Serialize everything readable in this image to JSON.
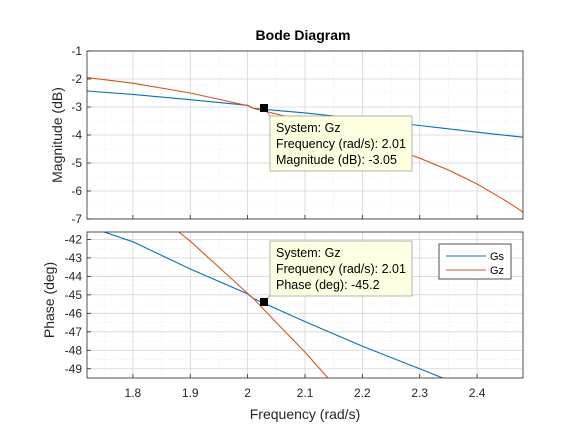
{
  "chart_data": {
    "type": "line",
    "title": "Bode Diagram",
    "xlabel": "Frequency  (rad/s)",
    "xlim": [
      1.72,
      2.48
    ],
    "x_ticks": [
      "1.8",
      "1.9",
      "2",
      "2.1",
      "2.2",
      "2.3",
      "2.4"
    ],
    "grid": true,
    "legend": {
      "position": "top-right",
      "entries": [
        "Gs",
        "Gz"
      ]
    },
    "panels": [
      {
        "name": "magnitude",
        "ylabel": "Magnitude (dB)",
        "ylim": [
          -7,
          -1
        ],
        "y_ticks": [
          "-1",
          "-2",
          "-3",
          "-4",
          "-5",
          "-6",
          "-7"
        ],
        "series": [
          {
            "name": "Gs",
            "color": "#0072BD",
            "x": [
              1.72,
              1.8,
              1.9,
              2.0,
              2.01,
              2.1,
              2.2,
              2.3,
              2.4,
              2.48
            ],
            "y": [
              -2.43,
              -2.55,
              -2.74,
              -2.94,
              -3.05,
              -3.21,
              -3.43,
              -3.66,
              -3.9,
              -4.08
            ]
          },
          {
            "name": "Gz",
            "color": "#D95319",
            "x": [
              1.72,
              1.8,
              1.9,
              2.0,
              2.01,
              2.1,
              2.2,
              2.3,
              2.35,
              2.4,
              2.45,
              2.48
            ],
            "y": [
              -1.95,
              -2.15,
              -2.5,
              -2.95,
              -3.05,
              -3.5,
              -4.1,
              -4.83,
              -5.25,
              -5.75,
              -6.35,
              -6.75
            ]
          }
        ],
        "datatip": {
          "system": "System: Gz",
          "frequency": "Frequency (rad/s): 2.01",
          "value": "Magnitude (dB): -3.05",
          "x": 2.01,
          "y": -3.05
        }
      },
      {
        "name": "phase",
        "ylabel": "Phase (deg)",
        "ylim": [
          -49.5,
          -41.6
        ],
        "y_ticks": [
          "-42",
          "-43",
          "-44",
          "-45",
          "-46",
          "-47",
          "-48",
          "-49"
        ],
        "series": [
          {
            "name": "Gs",
            "color": "#0072BD",
            "x": [
              1.75,
              1.8,
              1.9,
              2.0,
              2.01,
              2.1,
              2.2,
              2.3,
              2.34
            ],
            "y": [
              -41.6,
              -42.13,
              -43.6,
              -44.95,
              -45.2,
              -46.45,
              -47.78,
              -49.0,
              -49.5
            ]
          },
          {
            "name": "Gz",
            "color": "#D95319",
            "x": [
              1.88,
              1.9,
              2.0,
              2.01,
              2.05,
              2.1,
              2.14
            ],
            "y": [
              -41.6,
              -42.1,
              -44.92,
              -45.2,
              -46.5,
              -48.1,
              -49.5
            ]
          }
        ],
        "datatip": {
          "system": "System: Gz",
          "frequency": "Frequency (rad/s): 2.01",
          "value": "Phase (deg): -45.2",
          "x": 2.01,
          "y": -45.2
        }
      }
    ]
  }
}
